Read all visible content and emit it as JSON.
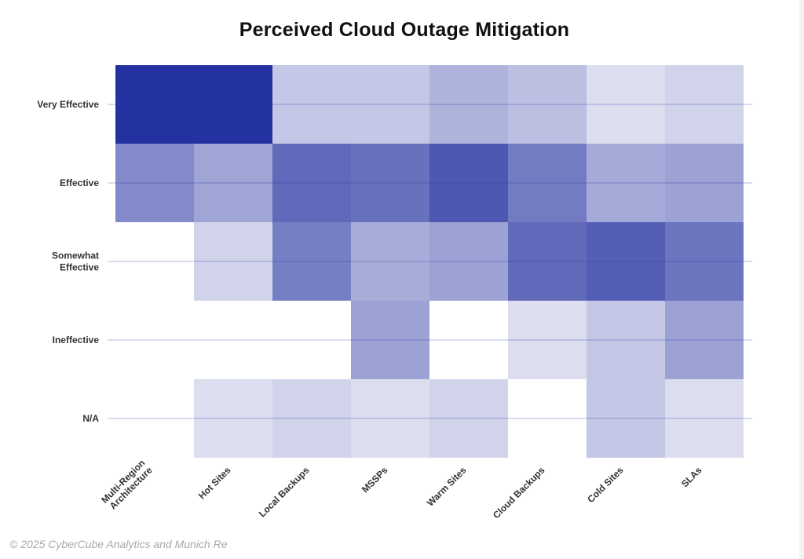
{
  "title": "Perceived Cloud Outage Mitigation",
  "footer": "© 2025 CyberCube Analytics and Munich Re",
  "colors": {
    "heat_base": "#2431a0",
    "gridline": "#b3b8e0",
    "background": "#ffffff"
  },
  "chart_data": {
    "type": "heatmap",
    "title": "Perceived Cloud Outage Mitigation",
    "x_categories": [
      "Multi-Region Architecture",
      "Hot Sites",
      "Local Backups",
      "MSSPs",
      "Warm Sites",
      "Cloud Backups",
      "Cold Sites",
      "SLAs"
    ],
    "x_tick_labels": [
      [
        "Multi-Region",
        "Architecture"
      ],
      [
        "Hot Sites"
      ],
      [
        "Local Backups"
      ],
      [
        "MSSPs"
      ],
      [
        "Warm Sites"
      ],
      [
        "Cloud Backups"
      ],
      [
        "Cold Sites"
      ],
      [
        "SLAs"
      ]
    ],
    "y_categories": [
      "Very Effective",
      "Effective",
      "Somewhat Effective",
      "Ineffective",
      "N/A"
    ],
    "y_tick_labels": [
      [
        "Very Effective"
      ],
      [
        "Effective"
      ],
      [
        "Somewhat",
        "Effective"
      ],
      [
        "Ineffective"
      ],
      [
        "N/A"
      ]
    ],
    "values": [
      [
        1.0,
        1.0,
        0.27,
        0.27,
        0.37,
        0.31,
        0.16,
        0.21
      ],
      [
        0.57,
        0.44,
        0.72,
        0.69,
        0.81,
        0.64,
        0.41,
        0.45
      ],
      [
        0.0,
        0.21,
        0.62,
        0.4,
        0.45,
        0.72,
        0.78,
        0.67
      ],
      [
        0.0,
        0.0,
        0.0,
        0.45,
        0.0,
        0.16,
        0.27,
        0.45
      ],
      [
        0.0,
        0.16,
        0.21,
        0.16,
        0.21,
        0.0,
        0.27,
        0.16
      ]
    ],
    "value_scale": "relative intensity 0–1",
    "grid": true,
    "legend": "none"
  }
}
